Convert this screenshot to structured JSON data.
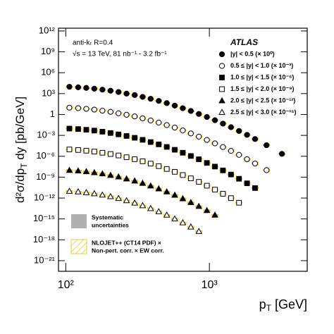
{
  "chart_data": {
    "type": "scatter",
    "title": "ATLAS",
    "annotations": [
      "anti-kₜ R=0.4",
      "√s = 13 TeV, 81 nb⁻¹ - 3.2 fb⁻¹"
    ],
    "xlabel_parts": [
      "p",
      "T",
      " [GeV]"
    ],
    "ylabel_parts": [
      "d²σ/dp",
      "T",
      " dy [pb/GeV]"
    ],
    "log_x": true,
    "log_y": true,
    "legend": "upper right",
    "xlim": [
      89,
      4800
    ],
    "ylim": [
      3e-23,
      2500000000000.0
    ],
    "xticks": [
      {
        "value": 100,
        "label": "10²"
      },
      {
        "value": 1000,
        "label": "10³"
      }
    ],
    "yticks": [
      {
        "value": 1000000000000.0,
        "label": "10¹²"
      },
      {
        "value": 1000000000.0,
        "label": "10⁹"
      },
      {
        "value": 1000000.0,
        "label": "10⁶"
      },
      {
        "value": 1000.0,
        "label": "10³"
      },
      1,
      {
        "value": 0.001,
        "label": "10⁻³"
      },
      {
        "value": 1e-06,
        "label": "10⁻⁶"
      },
      {
        "value": 1e-09,
        "label": "10⁻⁹"
      },
      {
        "value": 1e-12,
        "label": "10⁻¹²"
      },
      {
        "value": 1e-15,
        "label": "10⁻¹⁵"
      },
      {
        "value": 1e-18,
        "label": "10⁻¹⁸"
      },
      {
        "value": 1e-21,
        "label": "10⁻²¹"
      }
    ],
    "band_legend": [
      {
        "label": [
          "Systematic",
          "uncertainties"
        ],
        "color": "#b0b0b0"
      },
      {
        "label": [
          "NLOJET++ (CT14 PDF) ×",
          "Non-pert. corr. × EW corr."
        ],
        "color": "#e8c830"
      }
    ],
    "series": [
      {
        "name": "|y| < 0.5 (× 10⁰)",
        "marker": "circle",
        "filled": true,
        "color": "#000000",
        "x": [
          106,
          122,
          139,
          158,
          180,
          205,
          233,
          265,
          302,
          343,
          390,
          444,
          505,
          574,
          653,
          743,
          845,
          961,
          1093,
          1243,
          1414,
          1608,
          1829,
          2080,
          2500,
          3200
        ],
        "values": [
          9500.0,
          8100.0,
          6600.0,
          5100.0,
          3700.0,
          2600.0,
          1700.0,
          1000.0,
          620,
          340,
          180,
          90,
          43,
          19,
          8.0,
          3.2,
          1.2,
          0.44,
          0.15,
          0.049,
          0.015,
          0.0043,
          0.0012,
          0.0003,
          3.9e-05,
          2.2e-06
        ]
      },
      {
        "name": "0.5 ≤ |y| < 1.0 (× 10⁻³)",
        "marker": "circle",
        "filled": false,
        "color": "#000000",
        "x": [
          106,
          122,
          139,
          158,
          180,
          205,
          233,
          265,
          302,
          343,
          390,
          444,
          505,
          574,
          653,
          743,
          845,
          961,
          1093,
          1243,
          1414,
          1608,
          1829,
          2080,
          2500
        ],
        "values": [
          9.5,
          8.1,
          6.5,
          5.0,
          3.5,
          2.4,
          1.5,
          0.92,
          0.53,
          0.28,
          0.14,
          0.068,
          0.03,
          0.013,
          0.0051,
          0.0019,
          0.00067,
          0.00022,
          7e-05,
          2.1e-05,
          5.9e-06,
          1.6e-06,
          3.8e-07,
          9.1e-08,
          1e-08
        ]
      },
      {
        "name": "1.0 ≤ |y| < 1.5 (× 10⁻⁶)",
        "marker": "square",
        "filled": true,
        "color": "#000000",
        "x": [
          106,
          122,
          139,
          158,
          180,
          205,
          233,
          265,
          302,
          343,
          390,
          444,
          505,
          574,
          653,
          743,
          845,
          961,
          1093,
          1243,
          1414,
          1608,
          1829,
          2080
        ],
        "values": [
          0.0095,
          0.0081,
          0.0064,
          0.0049,
          0.0034,
          0.0022,
          0.0014,
          0.00082,
          0.00045,
          0.00023,
          0.00011,
          5.1e-05,
          2.2e-05,
          8.6e-06,
          3.2e-06,
          1.1e-06,
          3.7e-07,
          1.1e-07,
          3.3e-08,
          9.3e-09,
          2.4e-09,
          5.8e-10,
          1.3e-10,
          2.7e-11
        ]
      },
      {
        "name": "1.5 ≤ |y| < 2.0 (× 10⁻⁹)",
        "marker": "square",
        "filled": false,
        "color": "#000000",
        "x": [
          106,
          122,
          139,
          158,
          180,
          205,
          233,
          265,
          302,
          343,
          390,
          444,
          505,
          574,
          653,
          743,
          845,
          961,
          1093,
          1243,
          1414,
          1608
        ],
        "values": [
          9.5e-06,
          8e-06,
          6.3e-06,
          4.7e-06,
          3.2e-06,
          2.1e-06,
          1.3e-06,
          7.2e-07,
          3.8e-07,
          1.9e-07,
          8.8e-08,
          3.8e-08,
          1.5e-08,
          5.8e-09,
          2e-09,
          6.7e-10,
          2.1e-10,
          5.9e-11,
          1.6e-11,
          4.1e-12,
          9.6e-13,
          2.1e-13
        ]
      },
      {
        "name": "2.0 ≤ |y| < 2.5 (× 10⁻¹²)",
        "marker": "triangle",
        "filled": true,
        "color": "#000000",
        "x": [
          106,
          122,
          139,
          158,
          180,
          205,
          233,
          265,
          302,
          343,
          390,
          444,
          505,
          574,
          653,
          743,
          845,
          961,
          1093
        ],
        "values": [
          9.5e-09,
          7.9e-09,
          6.2e-09,
          4.5e-09,
          3e-09,
          1.8e-09,
          1.1e-09,
          5.6e-10,
          2.8e-10,
          1.3e-10,
          5.4e-11,
          2.1e-11,
          7.7e-12,
          2.6e-12,
          8.1e-13,
          2.3e-13,
          6.3e-14,
          1.6e-14,
          3.5e-15
        ]
      },
      {
        "name": "2.5 ≤ |y| < 3.0 (× 10⁻¹⁵)",
        "marker": "triangle",
        "filled": false,
        "color": "#000000",
        "x": [
          106,
          122,
          139,
          158,
          180,
          205,
          233,
          265,
          302,
          343,
          390,
          444,
          505,
          574,
          653,
          743,
          845
        ],
        "values": [
          9.5e-12,
          7.8e-12,
          6e-12,
          4.2e-12,
          2.7e-12,
          1.6e-12,
          8.6e-13,
          4.2e-13,
          1.9e-13,
          8.1e-14,
          3.1e-14,
          1.1e-14,
          3.5e-15,
          1e-15,
          2.8e-16,
          6.9e-17,
          1.6e-17
        ]
      }
    ]
  }
}
